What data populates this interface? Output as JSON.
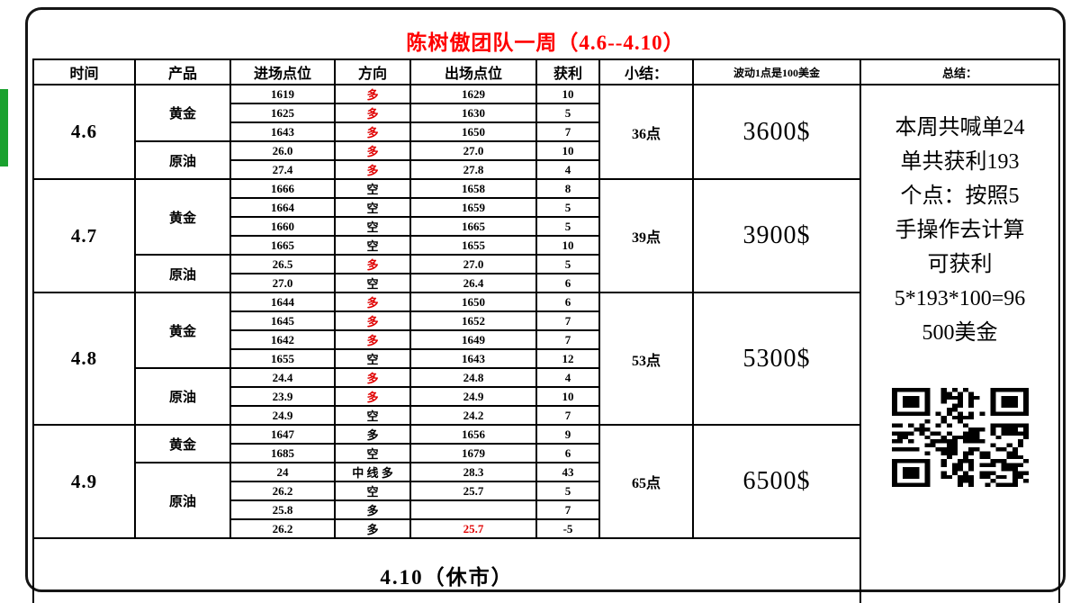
{
  "title": "陈树傲团队一周（4.6--4.10）",
  "header": {
    "time": "时间",
    "product": "产品",
    "entry": "进场点位",
    "direction": "方向",
    "exit": "出场点位",
    "profit": "获利",
    "subtotal": "小结：",
    "note": "波动1点是100美金",
    "summary": "总结："
  },
  "days": [
    {
      "date": "4.6",
      "points": "36点",
      "money": "3600$",
      "products": [
        {
          "name": "黄金",
          "trades": [
            {
              "entry": "1619",
              "dir": "多",
              "dirRed": true,
              "exit": "1629",
              "profit": "10"
            },
            {
              "entry": "1625",
              "dir": "多",
              "dirRed": true,
              "exit": "1630",
              "profit": "5"
            },
            {
              "entry": "1643",
              "dir": "多",
              "dirRed": true,
              "exit": "1650",
              "profit": "7"
            }
          ]
        },
        {
          "name": "原油",
          "trades": [
            {
              "entry": "26.0",
              "dir": "多",
              "dirRed": true,
              "exit": "27.0",
              "profit": "10"
            },
            {
              "entry": "27.4",
              "dir": "多",
              "dirRed": true,
              "exit": "27.8",
              "profit": "4"
            }
          ]
        }
      ]
    },
    {
      "date": "4.7",
      "points": "39点",
      "money": "3900$",
      "products": [
        {
          "name": "黄金",
          "trades": [
            {
              "entry": "1666",
              "dir": "空",
              "dirRed": false,
              "exit": "1658",
              "profit": "8"
            },
            {
              "entry": "1664",
              "dir": "空",
              "dirRed": false,
              "exit": "1659",
              "profit": "5"
            },
            {
              "entry": "1660",
              "dir": "空",
              "dirRed": false,
              "exit": "1665",
              "profit": "5"
            },
            {
              "entry": "1665",
              "dir": "空",
              "dirRed": false,
              "exit": "1655",
              "profit": "10"
            }
          ]
        },
        {
          "name": "原油",
          "trades": [
            {
              "entry": "26.5",
              "dir": "多",
              "dirRed": true,
              "exit": "27.0",
              "profit": "5"
            },
            {
              "entry": "27.0",
              "dir": "空",
              "dirRed": false,
              "exit": "26.4",
              "profit": "6"
            }
          ]
        }
      ]
    },
    {
      "date": "4.8",
      "points": "53点",
      "money": "5300$",
      "products": [
        {
          "name": "黄金",
          "trades": [
            {
              "entry": "1644",
              "dir": "多",
              "dirRed": true,
              "exit": "1650",
              "profit": "6"
            },
            {
              "entry": "1645",
              "dir": "多",
              "dirRed": true,
              "exit": "1652",
              "profit": "7"
            },
            {
              "entry": "1642",
              "dir": "多",
              "dirRed": true,
              "exit": "1649",
              "profit": "7"
            },
            {
              "entry": "1655",
              "dir": "空",
              "dirRed": false,
              "exit": "1643",
              "profit": "12"
            }
          ]
        },
        {
          "name": "原油",
          "trades": [
            {
              "entry": "24.4",
              "dir": "多",
              "dirRed": true,
              "exit": "24.8",
              "profit": "4"
            },
            {
              "entry": "23.9",
              "dir": "多",
              "dirRed": true,
              "exit": "24.9",
              "profit": "10"
            },
            {
              "entry": "24.9",
              "dir": "空",
              "dirRed": false,
              "exit": "24.2",
              "profit": "7"
            }
          ]
        }
      ]
    },
    {
      "date": "4.9",
      "points": "65点",
      "money": "6500$",
      "products": [
        {
          "name": "黄金",
          "trades": [
            {
              "entry": "1647",
              "dir": "多",
              "dirRed": false,
              "exit": "1656",
              "profit": "9"
            },
            {
              "entry": "1685",
              "dir": "空",
              "dirRed": false,
              "exit": "1679",
              "profit": "6"
            }
          ]
        },
        {
          "name": "原油",
          "trades": [
            {
              "entry": "24",
              "dir": "中 线 多",
              "dirRed": false,
              "exit": "28.3",
              "profit": "43"
            },
            {
              "entry": "26.2",
              "dir": "空",
              "dirRed": false,
              "exit": "25.7",
              "profit": "5"
            },
            {
              "entry": "25.8",
              "dir": "多",
              "dirRed": false,
              "exit": "",
              "profit": "7"
            },
            {
              "entry": "26.2",
              "dir": "多",
              "dirRed": false,
              "exit": "25.7",
              "exitRed": true,
              "profit": "-5"
            }
          ]
        }
      ]
    }
  ],
  "closed_label": "4.10（休市）",
  "summary_text": "本周共喊单24\n单共获利193\n个点：按照5\n手操作去计算\n可获利\n5*193*100=96\n500美金",
  "colors": {
    "title_red": "#ff0000",
    "direction_red": "#e00000",
    "green_artifact": "#1aa12e"
  }
}
